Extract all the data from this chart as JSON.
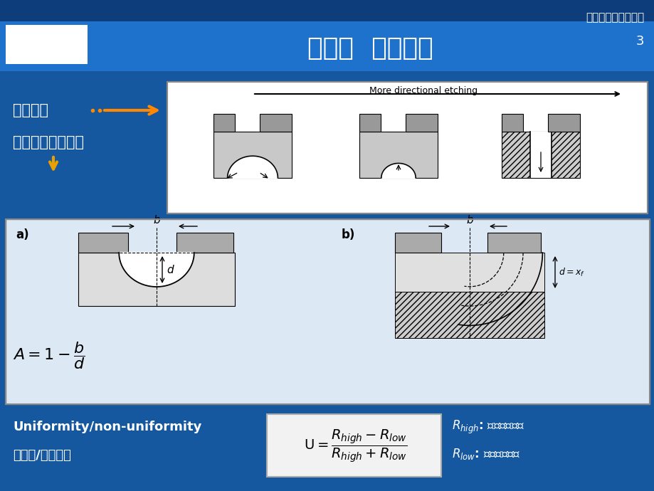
{
  "title": "第五章  刻蚀原理",
  "subtitle": "半导体制造工艺基础",
  "page_num": "3",
  "bg_dark": "#0d3d7a",
  "bg_mid": "#1558a0",
  "bg_light": "#1e72cc",
  "white": "#ffffff",
  "label1": "方向性：",
  "label2": "过腐蚀（钻蚀）：",
  "arrow_label": "More directional etching",
  "diagram_a_label": "a)",
  "diagram_b_label": "b)",
  "uniformity_en": "Uniformity/non-uniformity",
  "uniformity_cn": "均匀性/非均匀性",
  "light_gray": "#c8c8c8",
  "mid_gray": "#999999",
  "box_white": "#ffffff",
  "diagram_bg": "#dce9f5",
  "formula_bg": "#f0f0f0"
}
